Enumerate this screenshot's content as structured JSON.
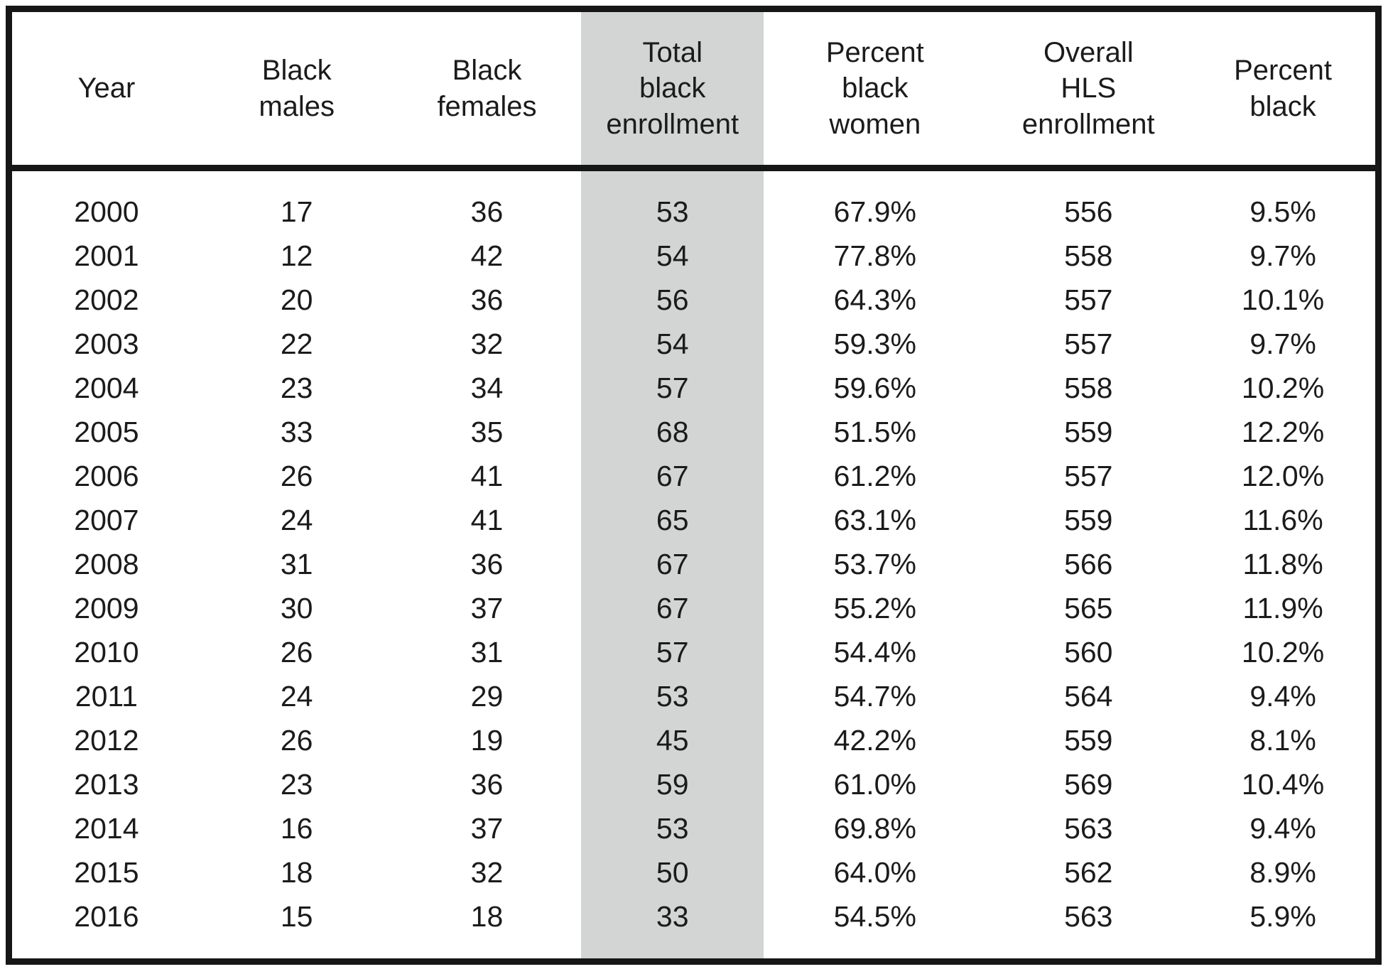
{
  "figure": {
    "background_color": "#ffffff",
    "border_color": "#161616",
    "highlight_color": "#d2d5d4",
    "highlighted_column": "Total black enrollment"
  },
  "chart_data": {
    "type": "table",
    "columns": [
      "Year",
      "Black males",
      "Black females",
      "Total black enrollment",
      "Percent black women",
      "Overall HLS enrollment",
      "Percent black"
    ],
    "column_display": [
      "Year",
      "Black\nmales",
      "Black\nfemales",
      "Total\nblack\nenrollment",
      "Percent\nblack\nwomen",
      "Overall\nHLS\nenrollment",
      "Percent\nblack"
    ],
    "highlighted_column_index": 3,
    "rows": [
      [
        "2000",
        "17",
        "36",
        "53",
        "67.9%",
        "556",
        "9.5%"
      ],
      [
        "2001",
        "12",
        "42",
        "54",
        "77.8%",
        "558",
        "9.7%"
      ],
      [
        "2002",
        "20",
        "36",
        "56",
        "64.3%",
        "557",
        "10.1%"
      ],
      [
        "2003",
        "22",
        "32",
        "54",
        "59.3%",
        "557",
        "9.7%"
      ],
      [
        "2004",
        "23",
        "34",
        "57",
        "59.6%",
        "558",
        "10.2%"
      ],
      [
        "2005",
        "33",
        "35",
        "68",
        "51.5%",
        "559",
        "12.2%"
      ],
      [
        "2006",
        "26",
        "41",
        "67",
        "61.2%",
        "557",
        "12.0%"
      ],
      [
        "2007",
        "24",
        "41",
        "65",
        "63.1%",
        "559",
        "11.6%"
      ],
      [
        "2008",
        "31",
        "36",
        "67",
        "53.7%",
        "566",
        "11.8%"
      ],
      [
        "2009",
        "30",
        "37",
        "67",
        "55.2%",
        "565",
        "11.9%"
      ],
      [
        "2010",
        "26",
        "31",
        "57",
        "54.4%",
        "560",
        "10.2%"
      ],
      [
        "2011",
        "24",
        "29",
        "53",
        "54.7%",
        "564",
        "9.4%"
      ],
      [
        "2012",
        "26",
        "19",
        "45",
        "42.2%",
        "559",
        "8.1%"
      ],
      [
        "2013",
        "23",
        "36",
        "59",
        "61.0%",
        "569",
        "10.4%"
      ],
      [
        "2014",
        "16",
        "37",
        "53",
        "69.8%",
        "563",
        "9.4%"
      ],
      [
        "2015",
        "18",
        "32",
        "50",
        "64.0%",
        "562",
        "8.9%"
      ],
      [
        "2016",
        "15",
        "18",
        "33",
        "54.5%",
        "563",
        "5.9%"
      ]
    ]
  }
}
